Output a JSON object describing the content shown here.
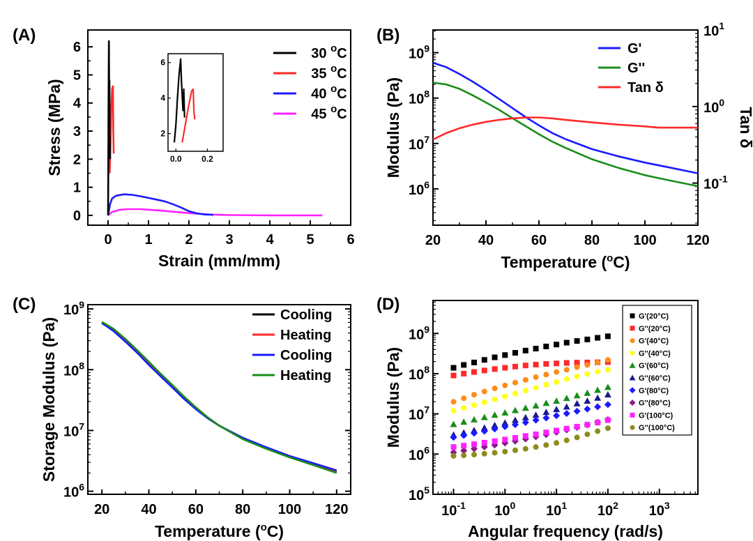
{
  "colors": {
    "black": "#000000",
    "red": "#ff2a2a",
    "blue": "#1a1aff",
    "magenta": "#ff22ff",
    "green": "#1a8c1a",
    "orange": "#ff8c1a",
    "yellow": "#ffff1a",
    "navy": "#1a1a8c",
    "purple": "#8c1a8c",
    "olive": "#8c8c1a"
  },
  "chart_data": [
    {
      "panel": "(A)",
      "type": "line",
      "xlabel": "Strain (mm/mm)",
      "ylabel": "Stress (MPa)",
      "xlim": [
        -0.5,
        6
      ],
      "ylim": [
        -0.35,
        6.6
      ],
      "xticks": [
        "0",
        "1",
        "2",
        "3",
        "4",
        "5",
        "6"
      ],
      "yticks": [
        "0",
        "1",
        "2",
        "3",
        "4",
        "5",
        "6"
      ],
      "legend_position": "top-right",
      "series": [
        {
          "name": "30 °C",
          "color": "black",
          "x": [
            0,
            0.005,
            0.01,
            0.015,
            0.02,
            0.025,
            0.03,
            0.035,
            0.04,
            0.05
          ],
          "y": [
            0,
            1.5,
            3.5,
            5.0,
            6.2,
            5.2,
            3.5,
            4.8,
            3.0,
            2.0
          ]
        },
        {
          "name": "35 °C",
          "color": "red",
          "x": [
            0.04,
            0.06,
            0.08,
            0.1,
            0.12,
            0.13,
            0.14
          ],
          "y": [
            1.5,
            2.5,
            3.8,
            4.5,
            4.6,
            3.0,
            2.2
          ]
        },
        {
          "name": "40 °C",
          "color": "blue",
          "x": [
            0,
            0.05,
            0.1,
            0.2,
            0.4,
            0.6,
            0.8,
            1.0,
            1.2,
            1.4,
            1.6,
            1.8,
            2.0,
            2.2,
            2.4,
            2.6
          ],
          "y": [
            0,
            0.4,
            0.6,
            0.7,
            0.75,
            0.73,
            0.68,
            0.62,
            0.56,
            0.5,
            0.4,
            0.28,
            0.15,
            0.07,
            0.03,
            0.02
          ]
        },
        {
          "name": "45 °C",
          "color": "magenta",
          "x": [
            0,
            0.1,
            0.3,
            0.5,
            0.8,
            1.0,
            1.3,
            1.6,
            2.0,
            2.5,
            3.0,
            4.0,
            5.3
          ],
          "y": [
            0,
            0.12,
            0.2,
            0.22,
            0.22,
            0.2,
            0.17,
            0.13,
            0.08,
            0.03,
            0.01,
            0.0,
            0.0
          ]
        }
      ],
      "inset": {
        "xlim": [
          -0.05,
          0.3
        ],
        "ylim": [
          1,
          6.5
        ],
        "xticks": [
          "0.0",
          "0.2"
        ],
        "yticks": [
          "2",
          "4",
          "6"
        ],
        "series": [
          {
            "color": "black",
            "x": [
              -0.01,
              0.0,
              0.01,
              0.02,
              0.03,
              0.035,
              0.045,
              0.05,
              0.055
            ],
            "y": [
              1.5,
              2.5,
              4.0,
              5.3,
              6.2,
              5.0,
              3.3,
              4.5,
              2.9
            ]
          },
          {
            "color": "red",
            "x": [
              0.04,
              0.06,
              0.08,
              0.1,
              0.11,
              0.115,
              0.12
            ],
            "y": [
              1.5,
              2.5,
              3.5,
              4.4,
              4.5,
              3.2,
              2.8
            ]
          }
        ]
      }
    },
    {
      "panel": "(B)",
      "type": "line",
      "xlabel": "Temperature (°C)",
      "ylabel": "Modulus (Pa)",
      "y2label": "Tan δ",
      "xlim": [
        20,
        120
      ],
      "ylim_log": [
        5.2,
        9.5
      ],
      "y2lim_log": [
        -1.55,
        1.0
      ],
      "xticks": [
        "20",
        "40",
        "60",
        "80",
        "100",
        "120"
      ],
      "yticks": [
        {
          "base": "10",
          "exp": "6"
        },
        {
          "base": "10",
          "exp": "7"
        },
        {
          "base": "10",
          "exp": "8"
        },
        {
          "base": "10",
          "exp": "9"
        }
      ],
      "y2ticks": [
        {
          "base": "10",
          "exp": "-1"
        },
        {
          "base": "10",
          "exp": "0"
        },
        {
          "base": "10",
          "exp": "1"
        }
      ],
      "legend_position": "top-right",
      "series": [
        {
          "name": "G'",
          "color": "blue",
          "x": [
            20,
            25,
            30,
            35,
            40,
            45,
            50,
            55,
            60,
            65,
            70,
            80,
            90,
            100,
            110,
            120
          ],
          "y": [
            600000000.0,
            480000000.0,
            340000000.0,
            230000000.0,
            150000000.0,
            95000000.0,
            60000000.0,
            38000000.0,
            25000000.0,
            17000000.0,
            12500000.0,
            7500000.0,
            5200000.0,
            3800000.0,
            2900000.0,
            2200000.0
          ]
        },
        {
          "name": "G''",
          "color": "green",
          "x": [
            20,
            25,
            30,
            35,
            40,
            45,
            50,
            55,
            60,
            65,
            70,
            80,
            90,
            100,
            110,
            120
          ],
          "y": [
            220000000.0,
            200000000.0,
            160000000.0,
            115000000.0,
            80000000.0,
            55000000.0,
            36000000.0,
            24000000.0,
            16000000.0,
            11000000.0,
            8000000.0,
            4500000.0,
            2900000.0,
            2000000.0,
            1500000.0,
            1150000.0
          ]
        },
        {
          "name": "Tan δ",
          "color": "red",
          "axis": "y2",
          "x": [
            20,
            25,
            30,
            35,
            40,
            45,
            50,
            55,
            60,
            65,
            70,
            80,
            90,
            100,
            105,
            110,
            120
          ],
          "y": [
            0.37,
            0.45,
            0.52,
            0.58,
            0.63,
            0.67,
            0.7,
            0.72,
            0.72,
            0.7,
            0.67,
            0.62,
            0.58,
            0.55,
            0.53,
            0.53,
            0.53
          ]
        }
      ]
    },
    {
      "panel": "(C)",
      "type": "line",
      "xlabel": "Temperature (°C)",
      "ylabel": "Storage Modulus (Pa)",
      "xlim": [
        14,
        126
      ],
      "ylim_log": [
        5.95,
        9.07
      ],
      "xticks": [
        "20",
        "40",
        "60",
        "80",
        "100",
        "120"
      ],
      "yticks": [
        {
          "base": "10",
          "exp": "6"
        },
        {
          "base": "10",
          "exp": "7"
        },
        {
          "base": "10",
          "exp": "8"
        },
        {
          "base": "10",
          "exp": "9"
        }
      ],
      "legend_position": "top-right",
      "series": [
        {
          "name": "Cooling",
          "color": "black",
          "x": [
            20,
            25,
            30,
            35,
            40,
            45,
            50,
            55,
            60,
            65,
            70,
            80,
            90,
            100,
            110,
            120
          ],
          "y": [
            580000000.0,
            440000000.0,
            300000000.0,
            195000000.0,
            125000000.0,
            80000000.0,
            52000000.0,
            34000000.0,
            23000000.0,
            16000000.0,
            12000000.0,
            7500000.0,
            5200000.0,
            3700000.0,
            2800000.0,
            2100000.0
          ]
        },
        {
          "name": "Heating",
          "color": "red",
          "x": [
            20,
            25,
            30,
            35,
            40,
            45,
            50,
            55,
            60,
            65,
            70,
            80,
            90,
            100,
            110,
            120
          ],
          "y": [
            600000000.0,
            460000000.0,
            310000000.0,
            200000000.0,
            130000000.0,
            84000000.0,
            55000000.0,
            36000000.0,
            24000000.0,
            16500000.0,
            12000000.0,
            7300000.0,
            5100000.0,
            3700000.0,
            2800000.0,
            2050000.0
          ]
        },
        {
          "name": "Cooling",
          "color": "blue",
          "x": [
            20,
            25,
            30,
            35,
            40,
            45,
            50,
            55,
            60,
            65,
            70,
            80,
            90,
            100,
            110,
            120
          ],
          "y": [
            590000000.0,
            430000000.0,
            290000000.0,
            190000000.0,
            120000000.0,
            78000000.0,
            51000000.0,
            33000000.0,
            22500000.0,
            16000000.0,
            12000000.0,
            7600000.0,
            5300000.0,
            3800000.0,
            2900000.0,
            2200000.0
          ]
        },
        {
          "name": "Heating",
          "color": "green",
          "x": [
            20,
            25,
            30,
            35,
            40,
            45,
            50,
            55,
            60,
            65,
            70,
            80,
            90,
            100,
            110,
            120
          ],
          "y": [
            610000000.0,
            470000000.0,
            320000000.0,
            210000000.0,
            135000000.0,
            86000000.0,
            56000000.0,
            36000000.0,
            24000000.0,
            16500000.0,
            12000000.0,
            7200000.0,
            5000000.0,
            3600000.0,
            2700000.0,
            2000000.0
          ]
        }
      ]
    },
    {
      "panel": "(D)",
      "type": "scatter",
      "xlabel": "Angular frequency (rad/s)",
      "ylabel": "Modulus (Pa)",
      "xlim_log": [
        -1.4,
        3.75
      ],
      "ylim_log": [
        5.0,
        9.82
      ],
      "xticks": [
        {
          "base": "10",
          "exp": "-1"
        },
        {
          "base": "10",
          "exp": "0"
        },
        {
          "base": "10",
          "exp": "1"
        },
        {
          "base": "10",
          "exp": "2"
        },
        {
          "base": "10",
          "exp": "3"
        }
      ],
      "yticks": [
        {
          "base": "10",
          "exp": "5"
        },
        {
          "base": "10",
          "exp": "6"
        },
        {
          "base": "10",
          "exp": "7"
        },
        {
          "base": "10",
          "exp": "8"
        },
        {
          "base": "10",
          "exp": "9"
        }
      ],
      "legend_position": "top-right",
      "x": [
        0.1,
        0.158,
        0.251,
        0.398,
        0.631,
        1.0,
        1.58,
        2.51,
        3.98,
        6.31,
        10.0,
        15.8,
        25.1,
        39.8,
        63.1,
        100
      ],
      "series": [
        {
          "name": "G'(20°C)",
          "color": "black",
          "marker": "square",
          "y": [
            140000000.0,
            165000000.0,
            190000000.0,
            220000000.0,
            255000000.0,
            290000000.0,
            330000000.0,
            375000000.0,
            420000000.0,
            475000000.0,
            530000000.0,
            590000000.0,
            650000000.0,
            710000000.0,
            780000000.0,
            850000000.0
          ]
        },
        {
          "name": "G''(20°C)",
          "color": "red",
          "marker": "square",
          "y": [
            90000000.0,
            100000000.0,
            110000000.0,
            120000000.0,
            130000000.0,
            140000000.0,
            150000000.0,
            160000000.0,
            168000000.0,
            175000000.0,
            180000000.0,
            185000000.0,
            188000000.0,
            190000000.0,
            192000000.0,
            195000000.0
          ]
        },
        {
          "name": "G'(40°C)",
          "color": "orange",
          "marker": "circle",
          "y": [
            20000000.0,
            24500000.0,
            30000000.0,
            36000000.0,
            43000000.0,
            51000000.0,
            60000000.0,
            70000000.0,
            82000000.0,
            95000000.0,
            110000000.0,
            125000000.0,
            145000000.0,
            165000000.0,
            190000000.0,
            220000000.0
          ]
        },
        {
          "name": "G''(40°C)",
          "color": "yellow",
          "marker": "circle",
          "y": [
            12000000.0,
            14000000.0,
            16500000.0,
            19500000.0,
            23000000.0,
            27000000.0,
            32000000.0,
            38000000.0,
            45000000.0,
            53000000.0,
            62000000.0,
            73000000.0,
            85000000.0,
            98000000.0,
            112000000.0,
            125000000.0
          ]
        },
        {
          "name": "G'(60°C)",
          "color": "green",
          "marker": "triangle",
          "y": [
            5500000.0,
            6300000.0,
            7200000.0,
            8200000.0,
            9400000.0,
            10700000.0,
            12200000.0,
            14000000.0,
            16000000.0,
            18500000.0,
            21000000.0,
            24500000.0,
            28500000.0,
            33000000.0,
            39000000.0,
            46000000.0
          ]
        },
        {
          "name": "G''(60°C)",
          "color": "navy",
          "marker": "triangle",
          "y": [
            3000000.0,
            3400000.0,
            3900000.0,
            4500000.0,
            5200000.0,
            6000000.0,
            7000000.0,
            8100000.0,
            9400000.0,
            11000000.0,
            13000000.0,
            15000000.0,
            18000000.0,
            21000000.0,
            25000000.0,
            30000000.0
          ]
        },
        {
          "name": "G'(80°C)",
          "color": "blue",
          "marker": "diamond",
          "y": [
            2600000.0,
            2900000.0,
            3300000.0,
            3700000.0,
            4200000.0,
            4800000.0,
            5400000.0,
            6100000.0,
            7000000.0,
            7900000.0,
            9000000.0,
            10200000.0,
            11600000.0,
            13200000.0,
            15000000.0,
            17000000.0
          ]
        },
        {
          "name": "G''(80°C)",
          "color": "purple",
          "marker": "diamond",
          "y": [
            1100000.0,
            1220000.0,
            1350000.0,
            1500000.0,
            1680000.0,
            1880000.0,
            2100000.0,
            2380000.0,
            2700000.0,
            3050000.0,
            3500000.0,
            4000000.0,
            4600000.0,
            5300000.0,
            6200000.0,
            7200000.0
          ]
        },
        {
          "name": "G'(100°C)",
          "color": "magenta",
          "marker": "square",
          "y": [
            1500000.0,
            1620000.0,
            1760000.0,
            1920000.0,
            2100000.0,
            2300000.0,
            2550000.0,
            2820000.0,
            3100000.0,
            3450000.0,
            3850000.0,
            4300000.0,
            4800000.0,
            5400000.0,
            6100000.0,
            7000000.0
          ]
        },
        {
          "name": "G''(100°C)",
          "color": "olive",
          "marker": "circle",
          "y": [
            900000.0,
            930000.0,
            970000.0,
            1020000.0,
            1080000.0,
            1150000.0,
            1240000.0,
            1350000.0,
            1500000.0,
            1680000.0,
            1900000.0,
            2200000.0,
            2600000.0,
            3100000.0,
            3700000.0,
            4400000.0
          ]
        }
      ]
    }
  ]
}
